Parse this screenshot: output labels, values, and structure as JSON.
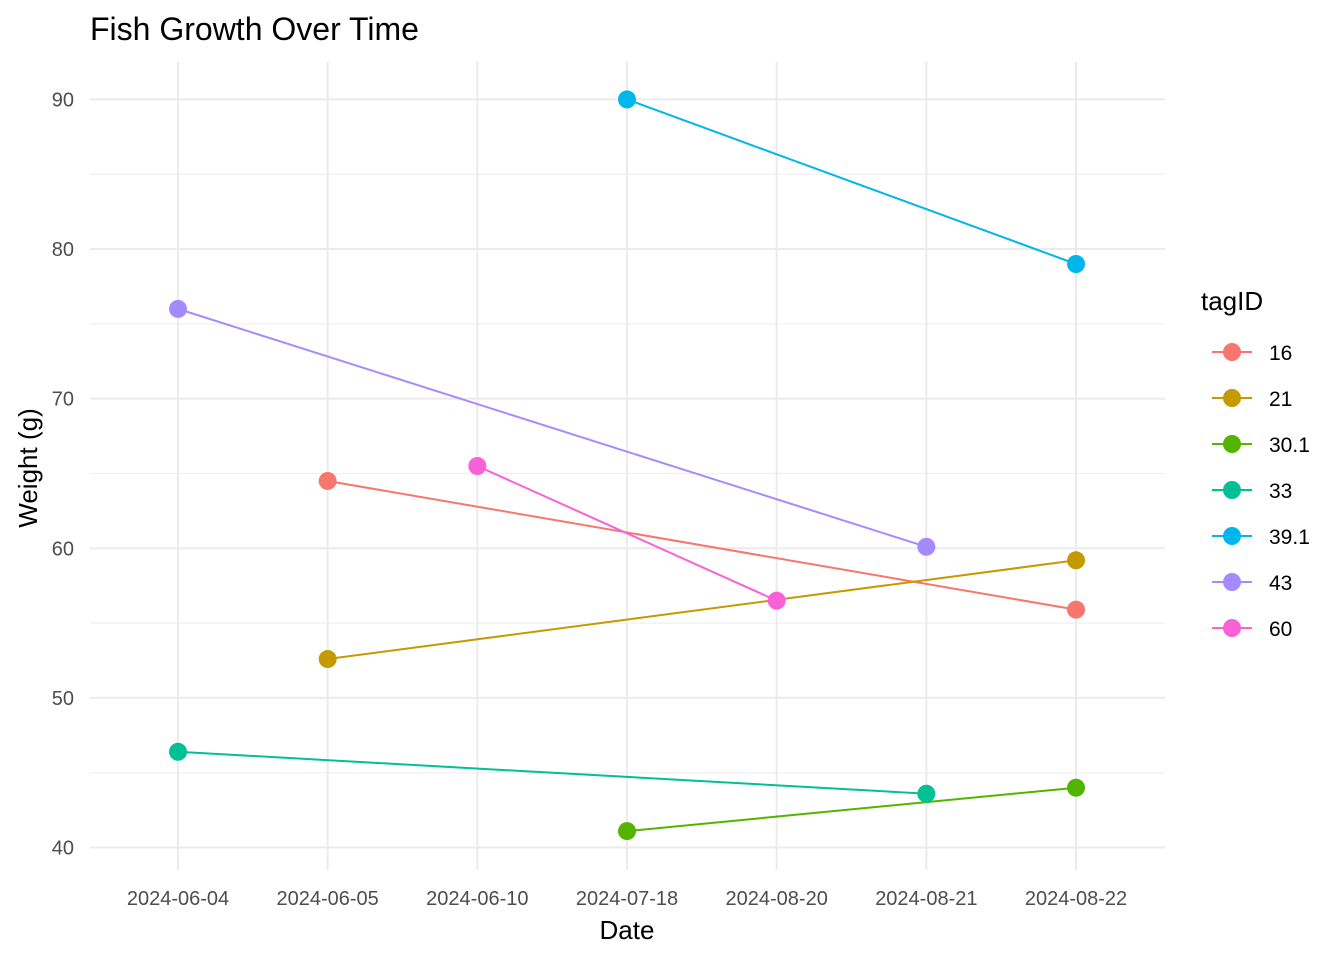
{
  "chart_data": {
    "type": "line",
    "title": "Fish Growth Over Time",
    "xlabel": "Date",
    "ylabel": "Weight (g)",
    "x_scale": "categorical",
    "categories": [
      "2024-06-04",
      "2024-06-05",
      "2024-06-10",
      "2024-07-18",
      "2024-08-20",
      "2024-08-21",
      "2024-08-22"
    ],
    "ylim": [
      38.5,
      92.5
    ],
    "yticks": [
      40,
      50,
      60,
      70,
      80,
      90
    ],
    "grid": true,
    "legend_title": "tagID",
    "legend_position": "right",
    "series": [
      {
        "name": "16",
        "color": "#F8766D",
        "points": [
          {
            "x": "2024-06-05",
            "y": 64.5
          },
          {
            "x": "2024-08-22",
            "y": 55.9
          }
        ]
      },
      {
        "name": "21",
        "color": "#C49A00",
        "points": [
          {
            "x": "2024-06-05",
            "y": 52.6
          },
          {
            "x": "2024-08-22",
            "y": 59.2
          }
        ]
      },
      {
        "name": "30.1",
        "color": "#53B400",
        "points": [
          {
            "x": "2024-07-18",
            "y": 41.1
          },
          {
            "x": "2024-08-22",
            "y": 44.0
          }
        ]
      },
      {
        "name": "33",
        "color": "#00C094",
        "points": [
          {
            "x": "2024-06-04",
            "y": 46.4
          },
          {
            "x": "2024-08-21",
            "y": 43.6
          }
        ]
      },
      {
        "name": "39.1",
        "color": "#00B6EB",
        "points": [
          {
            "x": "2024-07-18",
            "y": 90.0
          },
          {
            "x": "2024-08-22",
            "y": 79.0
          }
        ]
      },
      {
        "name": "43",
        "color": "#A58AFF",
        "points": [
          {
            "x": "2024-06-04",
            "y": 76.0
          },
          {
            "x": "2024-08-21",
            "y": 60.1
          }
        ]
      },
      {
        "name": "60",
        "color": "#FB61D7",
        "points": [
          {
            "x": "2024-06-10",
            "y": 65.5
          },
          {
            "x": "2024-08-20",
            "y": 56.5
          }
        ]
      }
    ]
  }
}
